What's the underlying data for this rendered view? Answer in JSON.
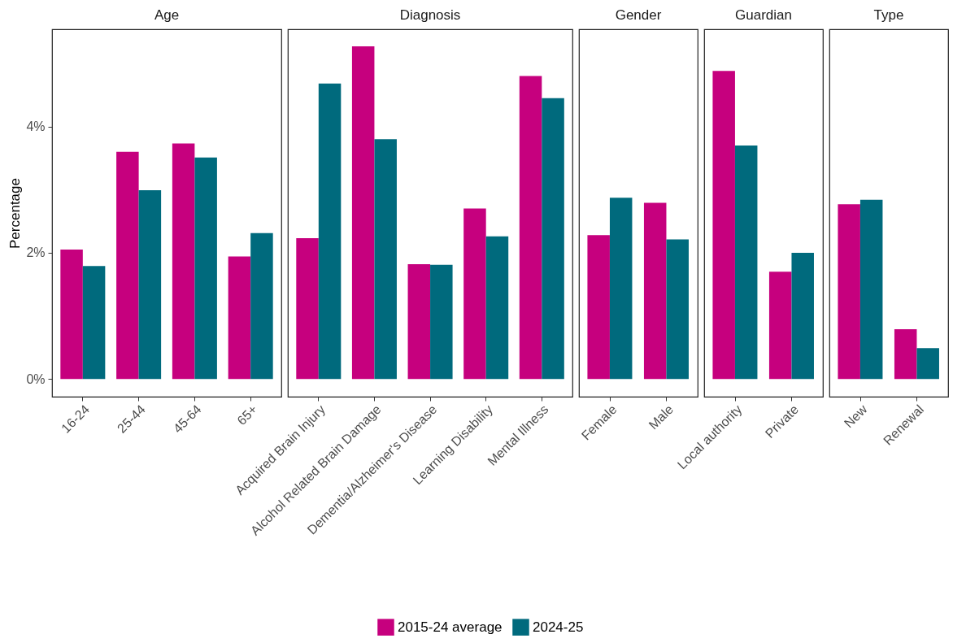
{
  "chart_data": [
    {
      "type": "bar",
      "title": "Age",
      "ylabel": "Percentage",
      "categories": [
        "16-24",
        "25-44",
        "45-64",
        "65+"
      ],
      "ylim": [
        -0.28,
        5.54
      ],
      "yticks": [
        {
          "value": 0,
          "label": "0%"
        },
        {
          "value": 2,
          "label": "2%"
        },
        {
          "value": 4,
          "label": "4%"
        }
      ],
      "legend": "bottom",
      "grid": false,
      "series": [
        {
          "name": "2015-24 average",
          "color": "#c6007e",
          "values": [
            2.05,
            3.6,
            3.73,
            1.94
          ]
        },
        {
          "name": "2024-25",
          "color": "#006a7d",
          "values": [
            1.79,
            2.99,
            3.51,
            2.31
          ]
        }
      ]
    },
    {
      "type": "bar",
      "title": "Diagnosis",
      "categories": [
        "Acquired Brain Injury",
        "Alcohol Related Brain Damage",
        "Dementia/Alzheimer's Disease",
        "Learning Disability",
        "Mental Illness"
      ],
      "ylim": [
        -0.28,
        5.54
      ],
      "tick_labels": "x",
      "grid": false,
      "series": [
        {
          "color": "#c6007e",
          "values": [
            2.23,
            5.27,
            1.82,
            2.7,
            4.8
          ]
        },
        {
          "color": "#006a7d",
          "values": [
            4.68,
            3.8,
            1.81,
            2.26,
            4.45
          ]
        }
      ]
    },
    {
      "type": "bar",
      "title": "Gender",
      "categories": [
        "Female",
        "Male"
      ],
      "ylim": [
        -0.28,
        5.54
      ],
      "tick_labels": "x",
      "grid": false,
      "series": [
        {
          "color": "#c6007e",
          "values": [
            2.28,
            2.79
          ]
        },
        {
          "color": "#006a7d",
          "values": [
            2.87,
            2.21
          ]
        }
      ]
    },
    {
      "type": "bar",
      "title": "Guardian",
      "categories": [
        "Local authority",
        "Private"
      ],
      "ylim": [
        -0.28,
        5.54
      ],
      "tick_labels": "x",
      "grid": false,
      "series": [
        {
          "color": "#c6007e",
          "values": [
            4.88,
            1.7
          ]
        },
        {
          "color": "#006a7d",
          "values": [
            3.7,
            2.0
          ]
        }
      ]
    },
    {
      "type": "bar",
      "title": "Type",
      "categories": [
        "New",
        "Renewal"
      ],
      "ylim": [
        -0.28,
        5.54
      ],
      "tick_labels": "x",
      "grid": false,
      "series": [
        {
          "color": "#c6007e",
          "values": [
            2.77,
            0.79
          ]
        },
        {
          "color": "#006a7d",
          "values": [
            2.84,
            0.49
          ]
        }
      ]
    }
  ]
}
